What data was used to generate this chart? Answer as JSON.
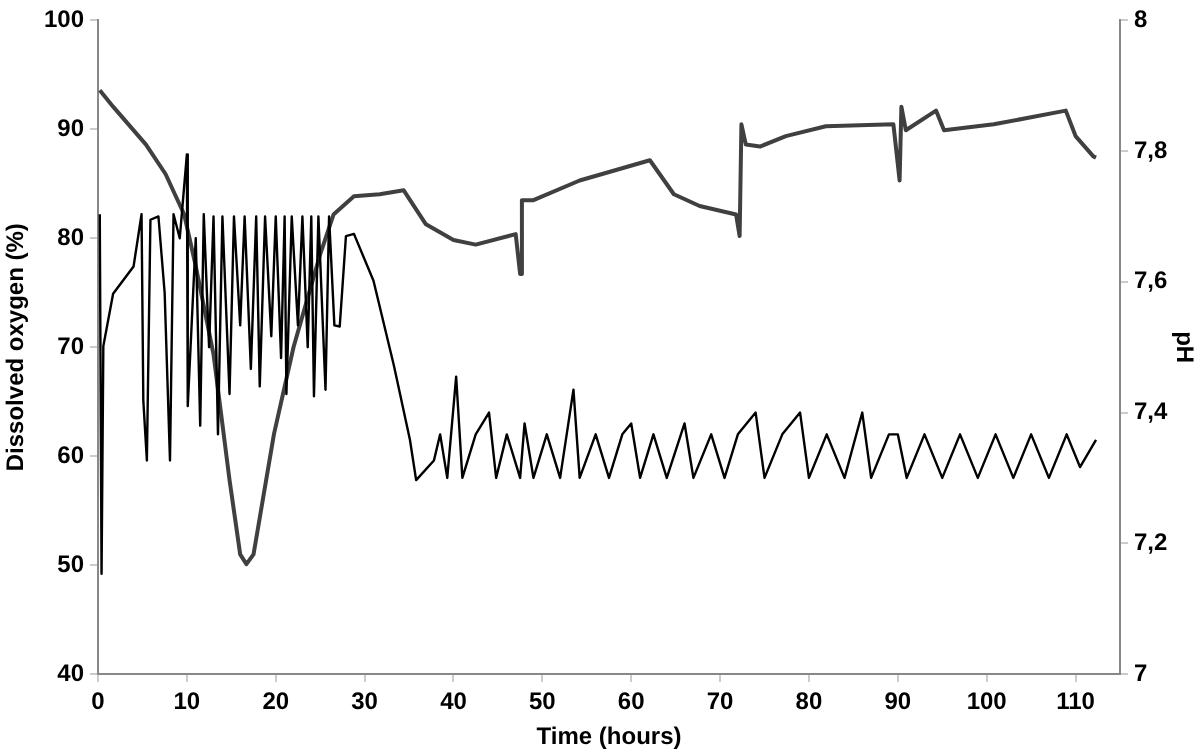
{
  "chart_data": {
    "type": "line",
    "xlabel": "Time (hours)",
    "ylabel": "Dissolved oxygen (%)",
    "y2label": "pH",
    "xlim": [
      0,
      115
    ],
    "xticks": [
      0,
      10,
      20,
      30,
      40,
      50,
      60,
      70,
      80,
      90,
      100,
      110
    ],
    "ylim": [
      40,
      100
    ],
    "yticks": [
      40,
      50,
      60,
      70,
      80,
      90,
      100
    ],
    "y2lim": [
      7,
      8
    ],
    "y2ticks": [
      {
        "value": 7,
        "label": "7"
      },
      {
        "value": 7.2,
        "label": "7,2"
      },
      {
        "value": 7.4,
        "label": "7,4"
      },
      {
        "value": 7.6,
        "label": "7,6"
      },
      {
        "value": 7.8,
        "label": "7,8"
      },
      {
        "value": 8,
        "label": "8"
      }
    ],
    "grid": false,
    "legend": false,
    "marker": "none",
    "line_style": "solid",
    "series": [
      {
        "color": "#000000",
        "x": [
          0.2,
          0.4,
          0.6,
          1.7,
          4.0,
          4.9,
          5.1,
          5.5,
          5.9,
          6.8,
          7.5,
          8.1,
          8.5,
          9.2,
          10,
          10.1,
          11,
          11.5,
          11.9,
          12.5,
          13,
          13.5,
          14,
          14.8,
          15.3,
          16,
          16.5,
          17.2,
          17.8,
          18.2,
          18.8,
          19.5,
          20,
          20.6,
          21,
          21.2,
          21.8,
          22.5,
          23,
          23.6,
          24,
          24.3,
          24.8,
          25.6,
          26,
          26.6,
          27.2,
          27.9,
          28.8,
          31,
          33.3,
          35.1,
          35.8,
          37.8,
          38.5,
          39.3,
          40.3,
          41,
          42.5,
          44,
          44.8,
          46,
          47.5,
          48,
          49,
          50.5,
          52,
          53.5,
          54.2,
          56,
          57.5,
          59,
          60,
          61,
          62.5,
          64,
          66,
          67,
          69,
          70.5,
          72,
          74,
          75,
          77,
          79,
          80,
          82,
          84,
          86,
          87,
          89,
          90,
          91,
          93,
          95,
          97,
          99,
          101,
          103,
          105,
          107,
          109,
          110.5,
          112.3
        ],
        "values": [
          82.2,
          49.2,
          70.1,
          74.9,
          77.4,
          82.2,
          65.1,
          59.6,
          81.7,
          82,
          75,
          59.6,
          82.2,
          80,
          87.7,
          64.6,
          80,
          62.8,
          82.2,
          70,
          82,
          62,
          82,
          65.7,
          82,
          72,
          82,
          68,
          82,
          66.4,
          82,
          71,
          82,
          69,
          82,
          65.7,
          82,
          72,
          82,
          70,
          82,
          65.5,
          82,
          66.1,
          82,
          72,
          71.9,
          80.2,
          80.4,
          76.1,
          68.3,
          61.5,
          57.8,
          59.6,
          62,
          58,
          67.3,
          58,
          62,
          64,
          58,
          62,
          58,
          63,
          58,
          62,
          58,
          66.1,
          58,
          62,
          58,
          62,
          63,
          58,
          62,
          58,
          63,
          58,
          62,
          58,
          62,
          64,
          58,
          62,
          64,
          58,
          62,
          58,
          64,
          58,
          62,
          62,
          58,
          62,
          58,
          62,
          58,
          62,
          58,
          62,
          58,
          62,
          59,
          61.5
        ]
      },
      {
        "color": "#404040",
        "axis": "y2",
        "x": [
          0.2,
          1.7,
          5.4,
          7.6,
          9.7,
          11,
          13,
          14.8,
          16,
          16.7,
          17.5,
          19.8,
          22,
          25,
          26.5,
          28.8,
          31.7,
          34.4,
          36.9,
          40,
          42.5,
          47,
          47.5,
          47.7,
          49,
          54.2,
          62.1,
          64.8,
          67.7,
          71.8,
          72.2,
          72.4,
          72.9,
          74.5,
          77.4,
          81.9,
          89.5,
          90.2,
          90.4,
          90.9,
          94.3,
          95.2,
          100.8,
          108.9,
          110,
          112,
          112.3
        ],
        "values": [
          7.893,
          7.868,
          7.81,
          7.765,
          7.703,
          7.624,
          7.489,
          7.297,
          7.183,
          7.168,
          7.183,
          7.367,
          7.5,
          7.642,
          7.703,
          7.731,
          7.734,
          7.74,
          7.688,
          7.664,
          7.657,
          7.673,
          7.612,
          7.725,
          7.725,
          7.755,
          7.786,
          7.734,
          7.716,
          7.703,
          7.67,
          7.841,
          7.81,
          7.807,
          7.823,
          7.838,
          7.841,
          7.755,
          7.868,
          7.832,
          7.862,
          7.832,
          7.841,
          7.862,
          7.823,
          7.792,
          7.79
        ]
      }
    ]
  }
}
